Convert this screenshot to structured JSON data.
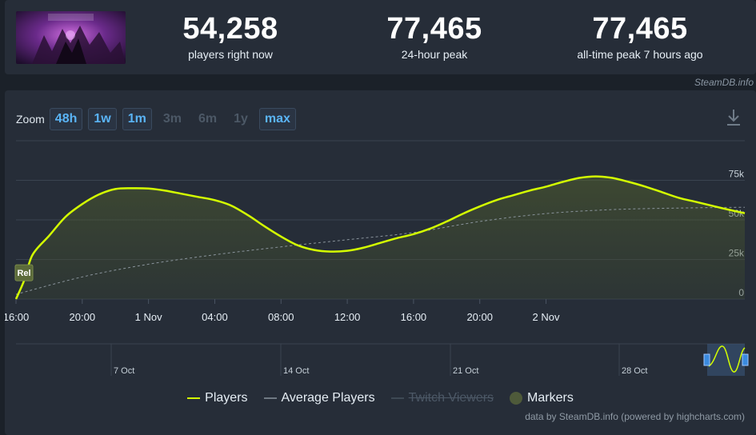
{
  "header": {
    "game_image_alt": "Dragon Age",
    "stats": [
      {
        "value": "54,258",
        "label": "players right now"
      },
      {
        "value": "77,465",
        "label": "24-hour peak"
      },
      {
        "value": "77,465",
        "label": "all-time peak 7 hours ago"
      }
    ],
    "attribution": "SteamDB.info"
  },
  "zoom": {
    "label": "Zoom",
    "buttons": [
      {
        "label": "48h",
        "active": true
      },
      {
        "label": "1w",
        "active": true
      },
      {
        "label": "1m",
        "active": true
      },
      {
        "label": "3m",
        "active": false
      },
      {
        "label": "6m",
        "active": false
      },
      {
        "label": "1y",
        "active": false
      },
      {
        "label": "max",
        "active": true
      }
    ]
  },
  "chart_data": {
    "type": "line",
    "xlabel": "",
    "ylabel": "",
    "ylim": [
      0,
      100000
    ],
    "y_ticks": [
      "0",
      "25k",
      "50k",
      "75k"
    ],
    "x_ticks": [
      "16:00",
      "20:00",
      "1 Nov",
      "04:00",
      "08:00",
      "12:00",
      "16:00",
      "20:00",
      "2 Nov"
    ],
    "x_range_hours": [
      0,
      44
    ],
    "grid": true,
    "series": [
      {
        "name": "Players",
        "color": "#d4ff00",
        "points": [
          [
            0,
            0
          ],
          [
            0.5,
            12000
          ],
          [
            1,
            28000
          ],
          [
            2,
            40000
          ],
          [
            3,
            52000
          ],
          [
            4,
            60000
          ],
          [
            5,
            66000
          ],
          [
            6,
            69500
          ],
          [
            7,
            70000
          ],
          [
            8,
            69800
          ],
          [
            9,
            68500
          ],
          [
            10,
            66500
          ],
          [
            11,
            64500
          ],
          [
            12,
            62500
          ],
          [
            13,
            59000
          ],
          [
            14,
            53000
          ],
          [
            15,
            46000
          ],
          [
            16,
            39500
          ],
          [
            17,
            34000
          ],
          [
            18,
            31000
          ],
          [
            19,
            30000
          ],
          [
            20,
            30500
          ],
          [
            21,
            32500
          ],
          [
            22,
            35500
          ],
          [
            23,
            38500
          ],
          [
            24,
            41000
          ],
          [
            25,
            44500
          ],
          [
            26,
            49000
          ],
          [
            27,
            54000
          ],
          [
            28,
            58500
          ],
          [
            29,
            62500
          ],
          [
            30,
            65500
          ],
          [
            31,
            68500
          ],
          [
            32,
            71000
          ],
          [
            33,
            74000
          ],
          [
            34,
            76500
          ],
          [
            35,
            77465
          ],
          [
            36,
            76500
          ],
          [
            37,
            74000
          ],
          [
            38,
            71000
          ],
          [
            39,
            67500
          ],
          [
            40,
            64000
          ],
          [
            41,
            61500
          ],
          [
            42,
            59000
          ],
          [
            43,
            56500
          ],
          [
            44,
            54258
          ]
        ]
      },
      {
        "name": "Average Players",
        "color": "#8a949c",
        "points": [
          [
            0,
            3000
          ],
          [
            4,
            14000
          ],
          [
            8,
            22000
          ],
          [
            12,
            28000
          ],
          [
            16,
            33000
          ],
          [
            20,
            37500
          ],
          [
            24,
            42000
          ],
          [
            28,
            49000
          ],
          [
            32,
            54000
          ],
          [
            36,
            56500
          ],
          [
            40,
            57500
          ],
          [
            44,
            58000
          ]
        ]
      },
      {
        "name": "Twitch Viewers",
        "color": "#4c5866",
        "hidden": true,
        "points": []
      }
    ],
    "markers": [
      {
        "x": 0,
        "y": 6500,
        "label": "Rel"
      }
    ],
    "navigator": {
      "labels": [
        "7 Oct",
        "14 Oct",
        "21 Oct",
        "28 Oct"
      ]
    }
  },
  "legend": {
    "items": [
      {
        "label": "Players",
        "color": "#d4ff00",
        "kind": "line"
      },
      {
        "label": "Average Players",
        "color": "#6f7983",
        "kind": "line"
      },
      {
        "label": "Twitch Viewers",
        "color": "#3e4954",
        "kind": "line",
        "hidden": true
      },
      {
        "label": "Markers",
        "color": "#4e5a3a",
        "kind": "dot"
      }
    ]
  },
  "credits": "data by SteamDB.info (powered by highcharts.com)"
}
